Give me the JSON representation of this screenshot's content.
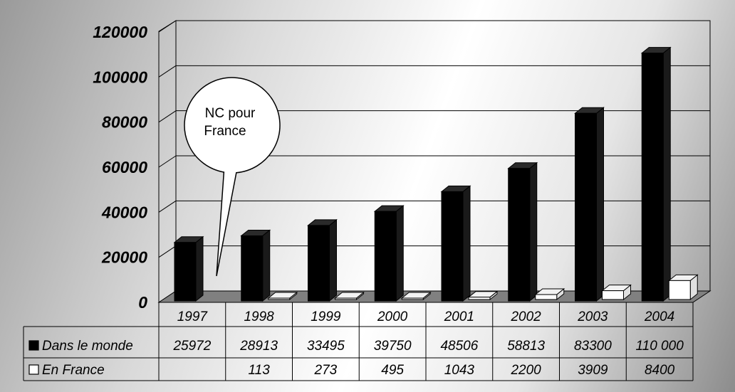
{
  "callout": {
    "line1": "NC pour",
    "line2": "France"
  },
  "chart_data": {
    "type": "bar",
    "categories": [
      "1997",
      "1998",
      "1999",
      "2000",
      "2001",
      "2002",
      "2003",
      "2004"
    ],
    "series": [
      {
        "name": "Dans le monde",
        "values": [
          25972,
          28913,
          33495,
          39750,
          48506,
          58813,
          83300,
          110000
        ],
        "labels": [
          "25972",
          "28913",
          "33495",
          "39750",
          "48506",
          "58813",
          "83300",
          "110 000"
        ],
        "color": "#000000"
      },
      {
        "name": "En France",
        "values": [
          null,
          113,
          273,
          495,
          1043,
          2200,
          3909,
          8400
        ],
        "labels": [
          "",
          "113",
          "273",
          "495",
          "1043",
          "2200",
          "3909",
          "8400"
        ],
        "color": "#ffffff"
      }
    ],
    "yticks": [
      "0",
      "20000",
      "40000",
      "60000",
      "80000",
      "100000",
      "120000"
    ],
    "ylim": [
      0,
      120000
    ],
    "grid": true,
    "legend": "data-table"
  }
}
